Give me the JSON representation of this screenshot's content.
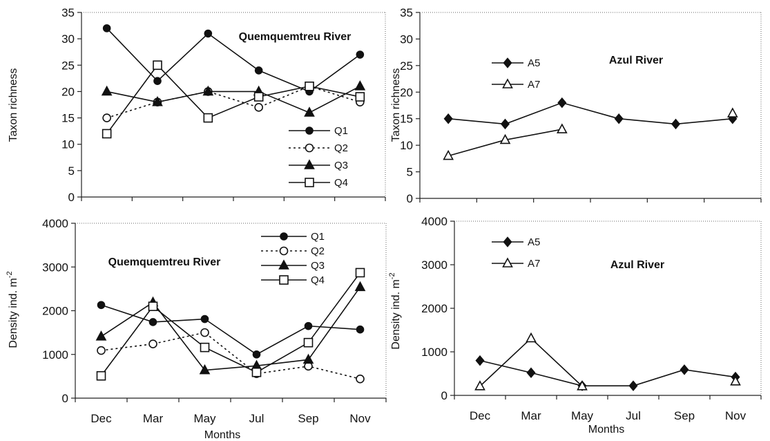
{
  "chart_data": [
    {
      "type": "line",
      "title": "Quemquemtreu River",
      "xlabel": "",
      "ylabel": "Taxon richness",
      "categories": [
        "Dec",
        "Mar",
        "May",
        "Jul",
        "Sep",
        "Nov"
      ],
      "ylim": [
        0,
        35
      ],
      "yticks": [
        "0",
        "5",
        "10",
        "15",
        "20",
        "25",
        "30",
        "35"
      ],
      "legend": "lower-right",
      "series": [
        {
          "name": "Q1",
          "values": [
            32,
            22,
            31,
            24,
            20,
            27
          ],
          "marker": "filled-circle",
          "dash": "solid"
        },
        {
          "name": "Q2",
          "values": [
            15,
            18,
            20,
            17,
            21,
            18
          ],
          "marker": "open-circle",
          "dash": "dotted"
        },
        {
          "name": "Q3",
          "values": [
            20,
            18,
            20,
            20,
            16,
            21
          ],
          "marker": "filled-triangle",
          "dash": "solid"
        },
        {
          "name": "Q4",
          "values": [
            12,
            25,
            15,
            19,
            21,
            19
          ],
          "marker": "open-square",
          "dash": "solid"
        }
      ]
    },
    {
      "type": "line",
      "title": "Azul River",
      "xlabel": "",
      "ylabel": "Taxon richness",
      "categories": [
        "Dec",
        "Mar",
        "May",
        "Jul",
        "Sep",
        "Nov"
      ],
      "ylim": [
        0,
        35
      ],
      "yticks": [
        "0",
        "5",
        "10",
        "15",
        "20",
        "25",
        "30",
        "35"
      ],
      "legend": "top-left",
      "series": [
        {
          "name": "A5",
          "values": [
            15,
            14,
            18,
            15,
            14,
            15
          ],
          "marker": "filled-diamond",
          "dash": "solid"
        },
        {
          "name": "A7",
          "values": [
            8,
            11,
            13,
            null,
            null,
            16
          ],
          "marker": "open-triangle",
          "dash": "solid"
        }
      ]
    },
    {
      "type": "line",
      "title": "Quemquemtreu River",
      "xlabel": "Months",
      "ylabel": "Density ind. m",
      "ylabel_sup": "-2",
      "categories": [
        "Dec",
        "Mar",
        "May",
        "Jul",
        "Sep",
        "Nov"
      ],
      "ylim": [
        0,
        4000
      ],
      "yticks": [
        "0",
        "1000",
        "2000",
        "3000",
        "4000"
      ],
      "legend": "top-right",
      "series": [
        {
          "name": "Q1",
          "values": [
            2130,
            1740,
            1810,
            1000,
            1650,
            1570
          ],
          "marker": "filled-circle",
          "dash": "solid"
        },
        {
          "name": "Q2",
          "values": [
            1090,
            1240,
            1500,
            560,
            730,
            440
          ],
          "marker": "open-circle",
          "dash": "dotted"
        },
        {
          "name": "Q3",
          "values": [
            1410,
            2190,
            640,
            740,
            880,
            2540
          ],
          "marker": "filled-triangle",
          "dash": "solid"
        },
        {
          "name": "Q4",
          "values": [
            510,
            2100,
            1160,
            590,
            1270,
            2870
          ],
          "marker": "open-square",
          "dash": "solid"
        }
      ]
    },
    {
      "type": "line",
      "title": "Azul River",
      "xlabel": "Months",
      "ylabel": "Density ind. m",
      "ylabel_sup": "-2",
      "categories": [
        "Dec",
        "Mar",
        "May",
        "Jul",
        "Sep",
        "Nov"
      ],
      "ylim": [
        0,
        4000
      ],
      "yticks": [
        "0",
        "1000",
        "2000",
        "3000",
        "4000"
      ],
      "legend": "top-left",
      "series": [
        {
          "name": "A5",
          "values": [
            800,
            520,
            220,
            220,
            590,
            420
          ],
          "marker": "filled-diamond",
          "dash": "solid"
        },
        {
          "name": "A7",
          "values": [
            210,
            1310,
            210,
            null,
            null,
            320
          ],
          "marker": "open-triangle",
          "dash": "solid"
        }
      ]
    }
  ]
}
